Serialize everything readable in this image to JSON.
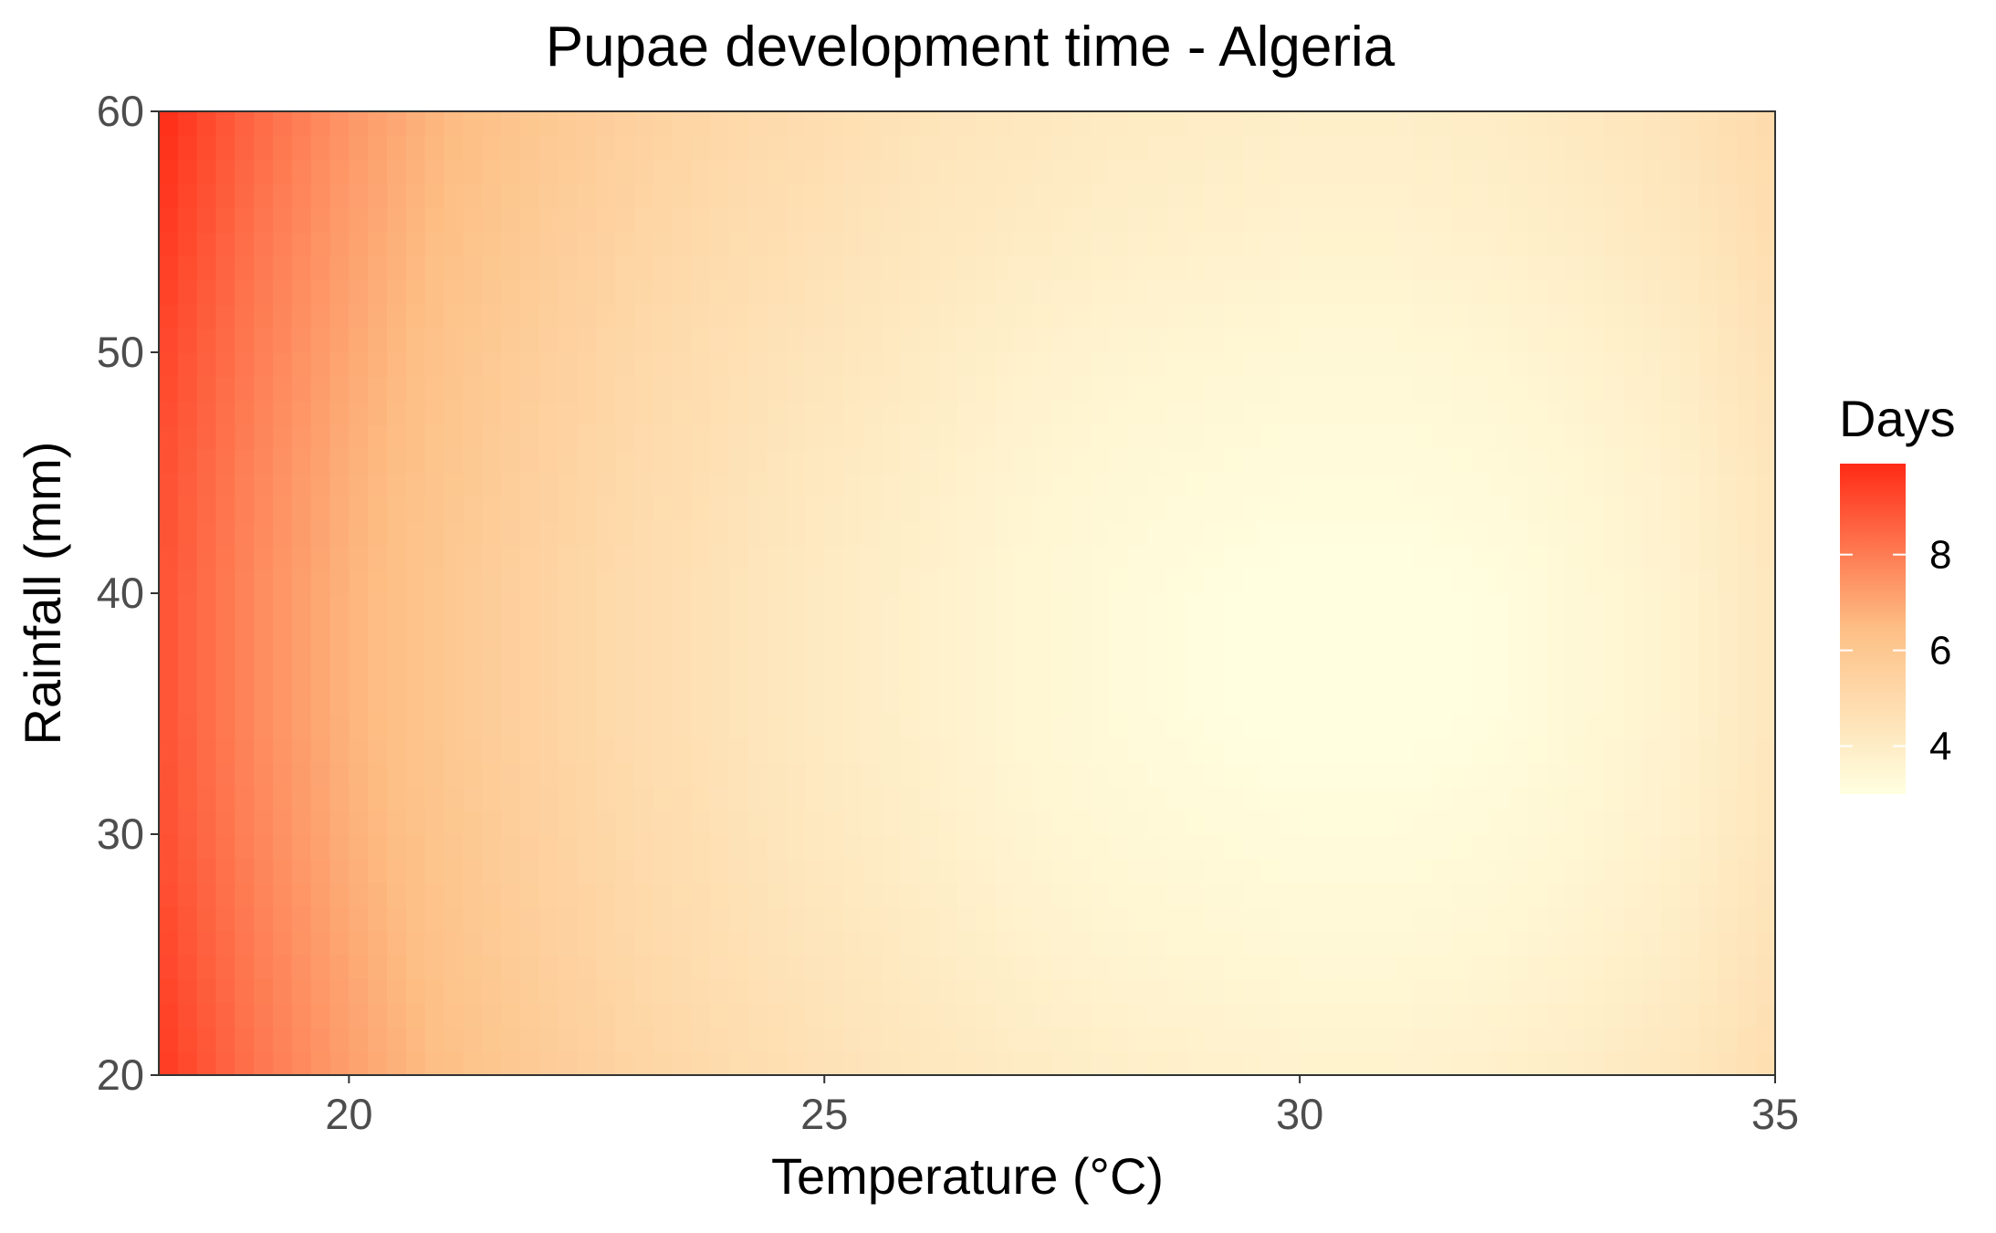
{
  "chart_data": {
    "type": "heatmap",
    "title": "Pupae development time - Algeria",
    "xlabel": "Temperature (°C)",
    "ylabel": "Rainfall (mm)",
    "xlim": [
      18,
      35
    ],
    "ylim": [
      20,
      60
    ],
    "xticks": [
      20,
      25,
      30,
      35
    ],
    "yticks": [
      20,
      30,
      40,
      50,
      60
    ],
    "x": [
      18,
      19,
      20,
      21,
      22,
      23,
      24,
      25,
      26,
      27,
      28,
      29,
      30,
      31,
      32,
      33,
      34,
      35
    ],
    "y": [
      20,
      25,
      30,
      35,
      40,
      45,
      50,
      55,
      60
    ],
    "values": [
      [
        9.6,
        8.2,
        7.2,
        6.4,
        5.8,
        5.3,
        4.9,
        4.6,
        4.3,
        4.1,
        3.9,
        3.8,
        3.7,
        3.7,
        3.8,
        4.0,
        4.3,
        4.8
      ],
      [
        9.3,
        8.0,
        7.0,
        6.2,
        5.6,
        5.1,
        4.7,
        4.4,
        4.1,
        3.8,
        3.6,
        3.5,
        3.4,
        3.4,
        3.5,
        3.7,
        4.0,
        4.6
      ],
      [
        9.1,
        7.8,
        6.8,
        6.1,
        5.5,
        5.0,
        4.6,
        4.2,
        3.9,
        3.6,
        3.4,
        3.3,
        3.2,
        3.2,
        3.3,
        3.5,
        3.8,
        4.4
      ],
      [
        9.0,
        7.7,
        6.7,
        6.0,
        5.4,
        4.9,
        4.5,
        4.1,
        3.8,
        3.5,
        3.3,
        3.1,
        3.0,
        3.0,
        3.1,
        3.4,
        3.7,
        4.3
      ],
      [
        9.0,
        7.7,
        6.7,
        6.0,
        5.4,
        4.9,
        4.5,
        4.1,
        3.8,
        3.5,
        3.3,
        3.1,
        3.0,
        3.0,
        3.1,
        3.4,
        3.7,
        4.3
      ],
      [
        9.1,
        7.8,
        6.8,
        6.1,
        5.5,
        5.0,
        4.6,
        4.2,
        3.9,
        3.6,
        3.4,
        3.3,
        3.2,
        3.2,
        3.3,
        3.5,
        3.8,
        4.4
      ],
      [
        9.3,
        8.0,
        7.0,
        6.2,
        5.6,
        5.1,
        4.7,
        4.4,
        4.1,
        3.8,
        3.6,
        3.5,
        3.4,
        3.4,
        3.5,
        3.7,
        4.0,
        4.6
      ],
      [
        9.6,
        8.2,
        7.2,
        6.4,
        5.8,
        5.3,
        4.9,
        4.6,
        4.3,
        4.1,
        3.9,
        3.8,
        3.7,
        3.7,
        3.8,
        4.0,
        4.3,
        4.8
      ],
      [
        9.9,
        8.5,
        7.4,
        6.6,
        6.0,
        5.5,
        5.1,
        4.8,
        4.5,
        4.3,
        4.1,
        4.0,
        3.9,
        3.9,
        4.0,
        4.2,
        4.5,
        5.0
      ]
    ],
    "legend": {
      "title": "Days",
      "ticks": [
        4,
        6,
        8
      ],
      "range": [
        3.0,
        9.9
      ],
      "placement": "right"
    },
    "colors": {
      "low": "#ffffe0",
      "mid": "#fdbf85",
      "high": "#ff2a16"
    },
    "grid": false
  }
}
